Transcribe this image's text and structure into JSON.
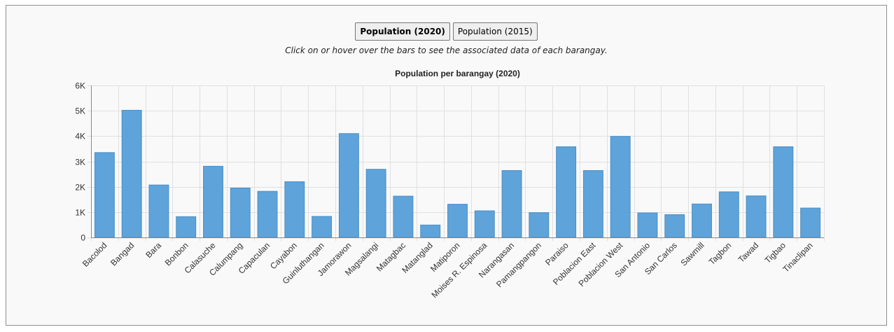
{
  "controls": {
    "button_2020": "Population (2020)",
    "button_2015": "Population (2015)",
    "hint": "Click on or hover over the bars to see the associated data of each barangay."
  },
  "colors": {
    "bar": "#5ea3da",
    "grid": "#e0e0e0",
    "axis": "#888888"
  },
  "chart_data": {
    "type": "bar",
    "title": "Population per barangay (2020)",
    "xlabel": "",
    "ylabel": "",
    "ylim": [
      0,
      6000
    ],
    "yticks": [
      0,
      1000,
      2000,
      3000,
      4000,
      5000,
      6000
    ],
    "ytick_labels": [
      "0",
      "1K",
      "2K",
      "3K",
      "4K",
      "5K",
      "6K"
    ],
    "grid": true,
    "categories": [
      "Bacolod",
      "Bangad",
      "Bara",
      "Bonbon",
      "Calasuche",
      "Calumpang",
      "Capaculan",
      "Cayabon",
      "Guinluthangan",
      "Jamorawon",
      "Magsalangi",
      "Matagbac",
      "Matanglad",
      "Matiporon",
      "Moises R. Espinosa",
      "Narangasan",
      "Pamangpangon",
      "Paraiso",
      "Poblacion East",
      "Poblacion West",
      "San Antonio",
      "San Carlos",
      "Sawmill",
      "Tagbon",
      "Tawad",
      "Tigbao",
      "Tinaclipan"
    ],
    "values": [
      3350,
      5020,
      2070,
      820,
      2810,
      1950,
      1820,
      2200,
      830,
      4100,
      2690,
      1630,
      490,
      1310,
      1050,
      2640,
      980,
      3580,
      2640,
      3990,
      970,
      900,
      1320,
      1800,
      1640,
      3580,
      1160
    ]
  }
}
